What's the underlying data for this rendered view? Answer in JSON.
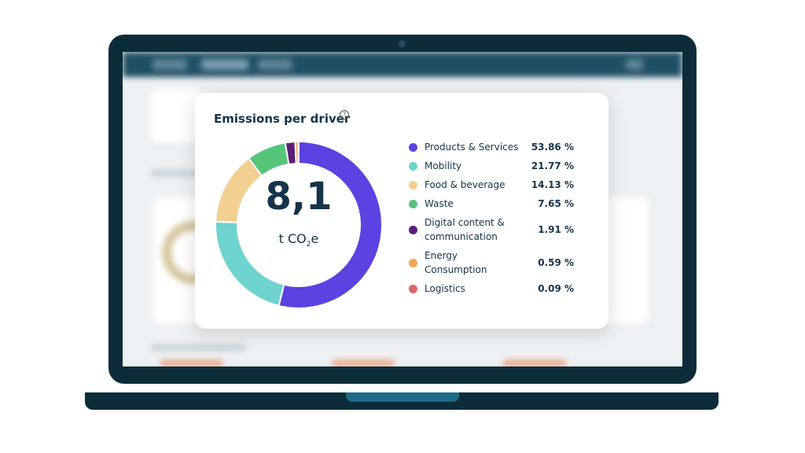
{
  "colors": {
    "products": "#5a43e0",
    "mobility": "#6fd3cf",
    "food": "#f1d092",
    "waste": "#56c57a",
    "digital": "#5b1f78",
    "energy": "#f2a65a",
    "logistics": "#e06666"
  },
  "card": {
    "title": "Emissions per driver",
    "total_value": "8,1",
    "unit_prefix": "t CO",
    "unit_sub": "2",
    "unit_suffix": "e"
  },
  "chart_data": {
    "type": "pie",
    "title": "Emissions per driver",
    "categories": [
      "Products & Services",
      "Mobility",
      "Food & beverage",
      "Waste",
      "Digital content & communication",
      "Energy Consumption",
      "Logistics"
    ],
    "values": [
      53.86,
      21.77,
      14.13,
      7.65,
      1.91,
      0.59,
      0.09
    ],
    "value_labels": [
      "53.86 %",
      "21.77 %",
      "14.13 %",
      "7.65 %",
      "1.91 %",
      "0.59 %",
      "0.09 %"
    ],
    "colors": [
      "#5a43e0",
      "#6fd3cf",
      "#f1d092",
      "#56c57a",
      "#5b1f78",
      "#f2a65a",
      "#e06666"
    ],
    "donut": true,
    "legend_position": "right"
  }
}
